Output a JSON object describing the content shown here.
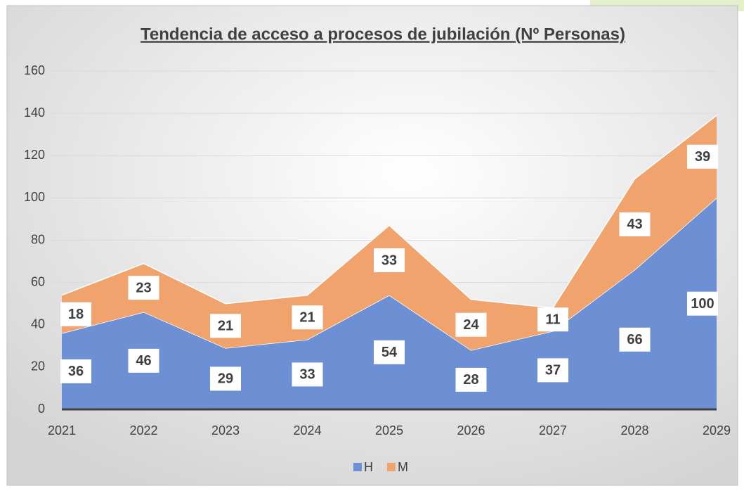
{
  "chart_data": {
    "type": "stacked_area",
    "title": "Tendencia de acceso a procesos de jubilación (Nº Personas)",
    "x": [
      2021,
      2022,
      2023,
      2024,
      2025,
      2026,
      2027,
      2028,
      2029
    ],
    "series": [
      {
        "name": "H",
        "color": "#6d8fd4",
        "values": [
          36,
          46,
          29,
          33,
          54,
          28,
          37,
          66,
          100
        ]
      },
      {
        "name": "M",
        "color": "#f0a36c",
        "values": [
          18,
          23,
          21,
          21,
          33,
          24,
          11,
          43,
          39
        ]
      }
    ],
    "ylim": [
      0,
      160
    ],
    "yticks": [
      0,
      20,
      40,
      60,
      80,
      100,
      120,
      140,
      160
    ],
    "grid": true,
    "legend": "bottom"
  }
}
